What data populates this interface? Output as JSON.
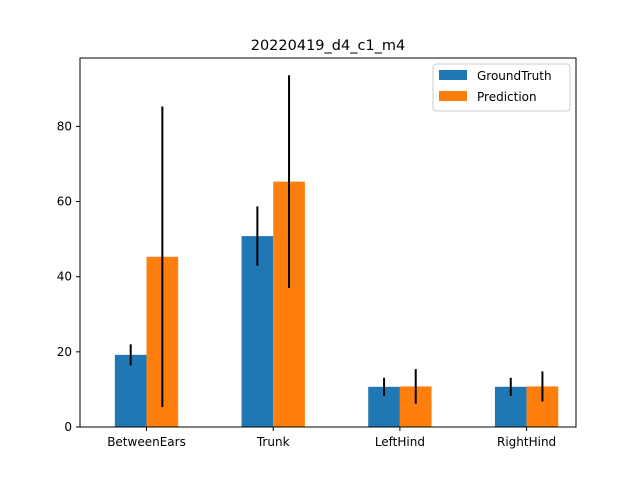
{
  "chart_data": {
    "type": "bar",
    "title": "20220419_d4_c1_m4",
    "xlabel": "",
    "ylabel": "",
    "categories": [
      "BetweenEars",
      "Trunk",
      "LeftHind",
      "RightHind"
    ],
    "ylim": [
      0,
      98.2
    ],
    "yticks": [
      0,
      20,
      40,
      60,
      80
    ],
    "grid": false,
    "legend_position": "top-right",
    "series": [
      {
        "name": "GroundTruth",
        "color": "#1f77b4",
        "values": [
          19.2,
          50.8,
          10.7,
          10.7
        ],
        "error": [
          2.8,
          7.9,
          2.4,
          2.4
        ]
      },
      {
        "name": "Prediction",
        "color": "#ff7f0e",
        "values": [
          45.3,
          65.3,
          10.8,
          10.8
        ],
        "error": [
          40.0,
          28.3,
          4.6,
          4.0
        ]
      }
    ]
  }
}
